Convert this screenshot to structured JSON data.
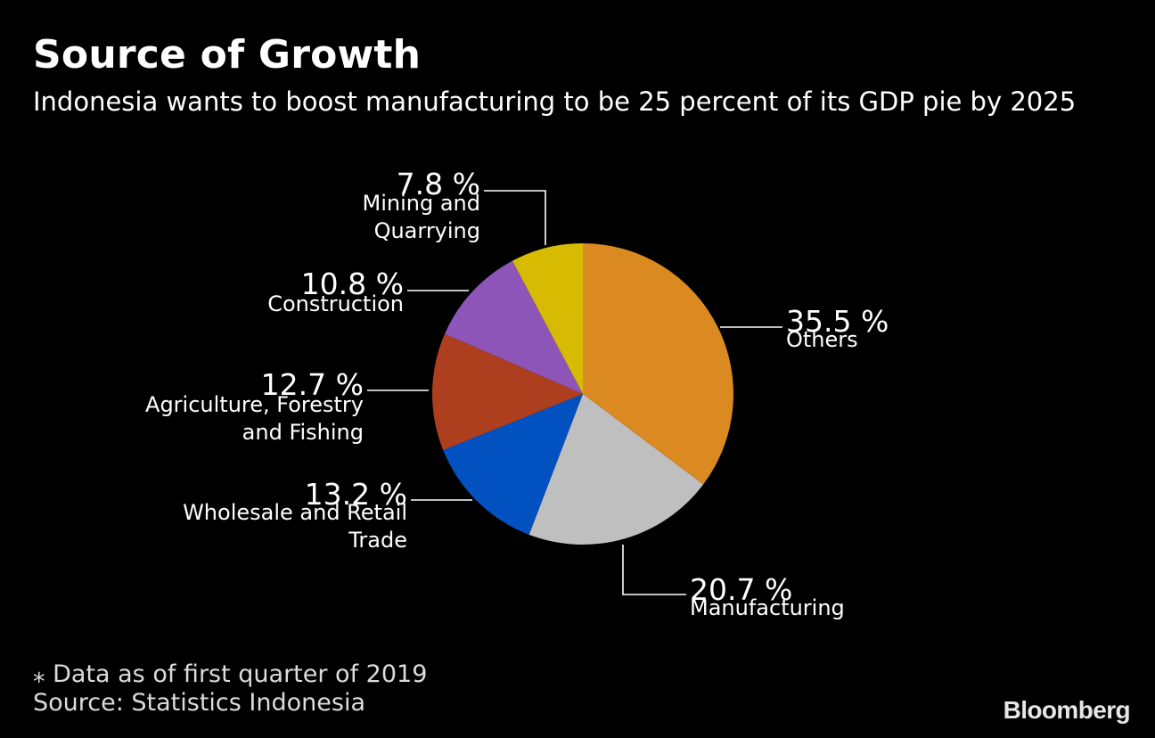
{
  "header": {
    "title": "Source of Growth",
    "subtitle": "Indonesia wants to boost manufacturing to be 25 percent of its GDP pie by 2025"
  },
  "chart_data": {
    "type": "pie",
    "title": "Source of Growth",
    "subtitle": "Indonesia wants to boost manufacturing to be 25 percent of its GDP pie by 2025",
    "slices": [
      {
        "label": [
          "Others"
        ],
        "value": 35.5,
        "value_label": "35.5 %",
        "color": "#DB8A22"
      },
      {
        "label": [
          "Manufacturing"
        ],
        "value": 20.7,
        "value_label": "20.7 %",
        "color": "#BFBFBF"
      },
      {
        "label": [
          "Wholesale and Retail",
          "Trade"
        ],
        "value": 13.2,
        "value_label": "13.2 %",
        "color": "#0251C0"
      },
      {
        "label": [
          "Agriculture, Forestry",
          "and Fishing"
        ],
        "value": 12.7,
        "value_label": "12.7 %",
        "color": "#AD3F1F"
      },
      {
        "label": [
          "Construction"
        ],
        "value": 10.8,
        "value_label": "10.8 %",
        "color": "#8E55B9"
      },
      {
        "label": [
          "Mining and",
          "Quarrying"
        ],
        "value": 7.8,
        "value_label": "7.8 %",
        "color": "#D7BA02"
      }
    ],
    "start_angle": "12 o'clock",
    "direction": "clockwise",
    "legend": "none"
  },
  "footer": {
    "note": "⁎ Data as of first quarter of 2019",
    "source": "Source: Statistics Indonesia",
    "brand": "Bloomberg"
  },
  "colors": {
    "background": "#000000",
    "text": "#FFFFFF",
    "leader_lines": "#FFFFFF",
    "footer_text": "#DCDCDC"
  }
}
